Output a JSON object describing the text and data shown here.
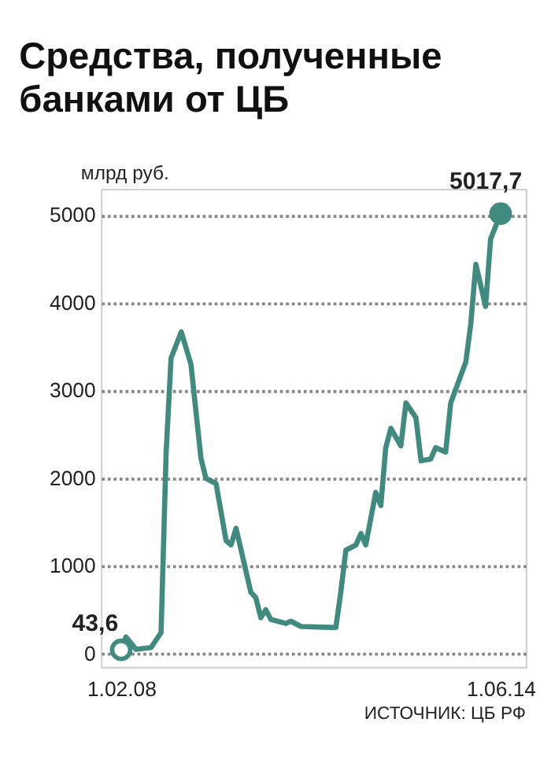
{
  "chart_data": {
    "type": "line",
    "title": "Средства, полученные банками от ЦБ",
    "ylabel": "млрд руб.",
    "x": [
      "2008-02-01",
      "2008-03-01",
      "2008-05-01",
      "2008-08-01",
      "2008-10-01",
      "2008-11-01",
      "2008-12-01",
      "2009-02-01",
      "2009-04-01",
      "2009-06-01",
      "2009-07-01",
      "2009-09-01",
      "2009-11-01",
      "2009-12-01",
      "2010-01-01",
      "2010-04-01",
      "2010-05-01",
      "2010-06-01",
      "2010-07-01",
      "2010-08-01",
      "2010-11-01",
      "2010-12-01",
      "2011-02-01",
      "2011-08-01",
      "2011-09-01",
      "2011-10-01",
      "2011-11-01",
      "2012-01-01",
      "2012-02-01",
      "2012-03-01",
      "2012-05-01",
      "2012-06-01",
      "2012-07-01",
      "2012-08-01",
      "2012-10-01",
      "2012-11-01",
      "2013-01-01",
      "2013-02-01",
      "2013-04-01",
      "2013-05-01",
      "2013-07-01",
      "2013-08-01",
      "2013-11-01",
      "2013-12-01",
      "2014-01-01",
      "2014-03-01",
      "2014-04-01",
      "2014-06-01"
    ],
    "series": [
      {
        "color": "#408a80",
        "values": [
          43.6,
          190,
          50,
          70,
          240,
          2300,
          3370,
          3670,
          3300,
          2230,
          2000,
          1940,
          1290,
          1240,
          1430,
          700,
          640,
          410,
          500,
          390,
          345,
          370,
          310,
          300,
          300,
          700,
          1180,
          1240,
          1370,
          1240,
          1840,
          1690,
          2350,
          2570,
          2370,
          2860,
          2690,
          2200,
          2220,
          2350,
          2300,
          2860,
          3330,
          3760,
          4440,
          3960,
          4730,
          5017.7
        ]
      }
    ],
    "xlim": [
      "2007-10-01",
      "2014-11-01"
    ],
    "xticks": [
      {
        "value": "2008-02-01",
        "label": "1.02.08"
      },
      {
        "value": "2014-06-01",
        "label": "1.06.14"
      }
    ],
    "ylim": [
      -150,
      5300
    ],
    "yticks": [
      0,
      1000,
      2000,
      3000,
      4000,
      5000
    ],
    "grid": "y",
    "marker": "none",
    "line_style": "solid",
    "annotations": [
      {
        "text": "43,6",
        "x": "2008-02-01",
        "y": 43.6
      },
      {
        "text": "5017,7",
        "x": "2014-06-01",
        "y": 5017.7
      },
      "ИСТОЧНИК: ЦБ РФ"
    ]
  }
}
